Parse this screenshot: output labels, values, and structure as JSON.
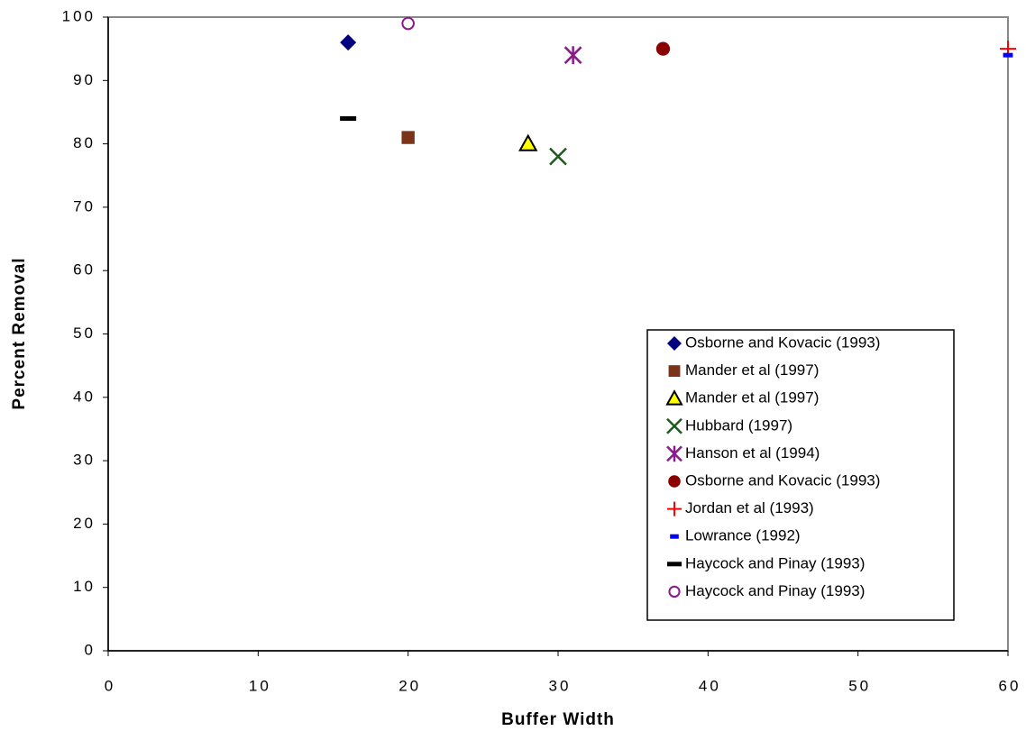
{
  "chart_data": {
    "type": "scatter",
    "x_label": "Buffer  Width",
    "y_label": "Percent  Removal",
    "xlim": [
      0,
      60
    ],
    "xticks": [
      0,
      10,
      20,
      30,
      40,
      50,
      60
    ],
    "ylim": [
      0,
      100
    ],
    "yticks": [
      0,
      10,
      20,
      30,
      40,
      50,
      60,
      70,
      80,
      90,
      100
    ],
    "legend": "right",
    "series": [
      {
        "name": "Osborne and Kovacic (1993)",
        "color": "#000080",
        "marker": "diamond",
        "x": [
          16
        ],
        "values": [
          96
        ]
      },
      {
        "name": "Mander et al (1997)",
        "color": "#7a3419",
        "marker": "square",
        "x": [
          20
        ],
        "values": [
          81
        ]
      },
      {
        "name": "Mander et al (1997)",
        "color": "#ffff00",
        "marker": "triangle",
        "x": [
          28
        ],
        "values": [
          80
        ]
      },
      {
        "name": "Hubbard (1997)",
        "color": "#1e5a1e",
        "marker": "x",
        "x": [
          30
        ],
        "values": [
          78
        ]
      },
      {
        "name": "Hanson et al (1994)",
        "color": "#8b1a8b",
        "marker": "star",
        "x": [
          31
        ],
        "values": [
          94
        ]
      },
      {
        "name": "Osborne and Kovacic (1993)",
        "color": "#8b0000",
        "marker": "circle",
        "x": [
          37
        ],
        "values": [
          95
        ]
      },
      {
        "name": "Jordan et al (1993)",
        "color": "#ff0000",
        "marker": "plus",
        "x": [
          60
        ],
        "values": [
          95
        ]
      },
      {
        "name": "Lowrance (1992)",
        "color": "#0000ff",
        "marker": "dash-short",
        "x": [
          60
        ],
        "values": [
          94
        ]
      },
      {
        "name": "Haycock and Pinay (1993)",
        "color": "#000000",
        "marker": "dash",
        "x": [
          16
        ],
        "values": [
          84
        ]
      },
      {
        "name": "Haycock and Pinay (1993)",
        "color": "#8b1a8b",
        "marker": "open-circle",
        "x": [
          20
        ],
        "values": [
          99
        ]
      }
    ]
  }
}
